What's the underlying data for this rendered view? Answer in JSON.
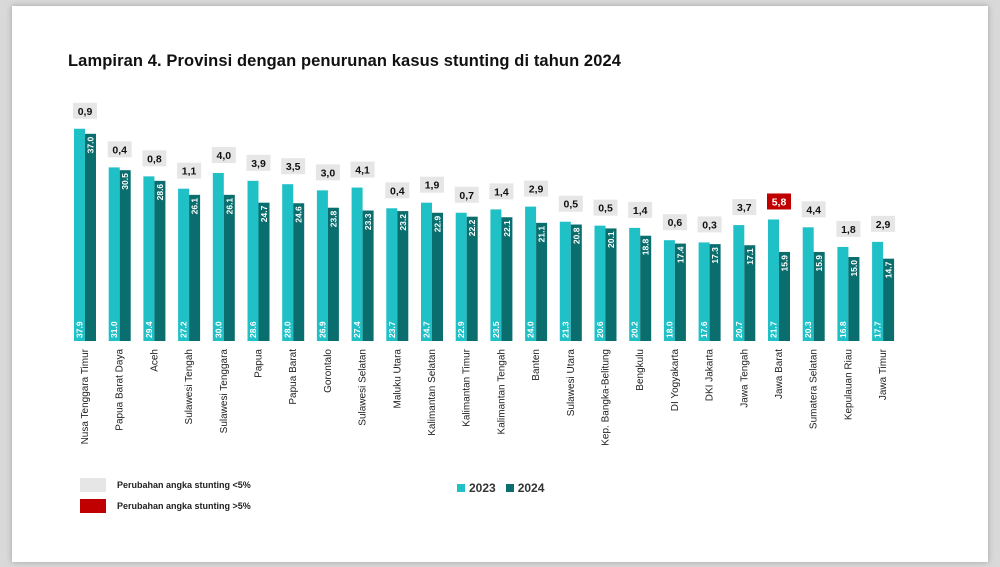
{
  "title": "Lampiran 4. Provinsi dengan penurunan kasus stunting di tahun 2024",
  "colors": {
    "series_2023": "#1fc0c6",
    "series_2024": "#0b6e6e",
    "change_small": "#e6e6e6",
    "change_large": "#c00000"
  },
  "legend": {
    "small_label": "Perubahan angka stunting <5%",
    "large_label": "Perubahan angka stunting >5%"
  },
  "chart_data": {
    "type": "bar",
    "ylim": [
      0,
      40
    ],
    "categories": [
      "Nusa Tenggara Timur",
      "Papua Barat Daya",
      "Aceh",
      "Sulawesi Tengah",
      "Sulawesi Tenggara",
      "Papua",
      "Papua Barat",
      "Gorontalo",
      "Sulawesi Selatan",
      "Maluku Utara",
      "Kalimantan Selatan",
      "Kalimantan Timur",
      "Kalimantan Tengah",
      "Banten",
      "Sulawesi Utara",
      "Kep. Bangka-Belitung",
      "Bengkulu",
      "DI Yogyakarta",
      "DKI Jakarta",
      "Jawa Tengah",
      "Jawa Barat",
      "Sumatera Selatan",
      "Kepulauan Riau",
      "Jawa Timur"
    ],
    "series": [
      {
        "name": "2023",
        "values": [
          37.9,
          31.0,
          29.4,
          27.2,
          30.0,
          28.6,
          28.0,
          26.9,
          27.4,
          23.7,
          24.7,
          22.9,
          23.5,
          24.0,
          21.3,
          20.6,
          20.2,
          18.0,
          17.6,
          20.7,
          21.7,
          20.3,
          16.8,
          17.7
        ],
        "labels": [
          "37.9",
          "31.0",
          "29.4",
          "27.2",
          "30.0",
          "28.6",
          "28.0",
          "26.9",
          "27.4",
          "23.7",
          "24.7",
          "22.9",
          "23.5",
          "24.0",
          "21.3",
          "20.6",
          "20.2",
          "18.0",
          "17.6",
          "20.7",
          "21.7",
          "20.3",
          "16.8",
          "17.7"
        ]
      },
      {
        "name": "2024",
        "values": [
          37.0,
          30.5,
          28.6,
          26.1,
          26.1,
          24.7,
          24.6,
          23.8,
          23.3,
          23.2,
          22.9,
          22.2,
          22.1,
          21.1,
          20.8,
          20.1,
          18.8,
          17.4,
          17.3,
          17.1,
          15.9,
          15.9,
          15.0,
          14.7
        ],
        "labels": [
          "37.0",
          "30.5",
          "28.6",
          "26.1",
          "26.1",
          "24.7",
          "24.6",
          "23.8",
          "23.3",
          "23.2",
          "22.9",
          "22.2",
          "22.1",
          "21.1",
          "20.8",
          "20.1",
          "18.8",
          "17.4",
          "17.3",
          "17.1",
          "15.9",
          "15.9",
          "15.0",
          "14.7"
        ]
      }
    ],
    "changes": [
      "0,9",
      "0,4",
      "0,8",
      "1,1",
      "4,0",
      "3,9",
      "3,5",
      "3,0",
      "4,1",
      "0,4",
      "1,9",
      "0,7",
      "1,4",
      "2,9",
      "0,5",
      "0,5",
      "1,4",
      "0,6",
      "0,3",
      "3,7",
      "5,8",
      "4,4",
      "1,8",
      "2,9"
    ],
    "change_category": [
      "small",
      "small",
      "small",
      "small",
      "small",
      "small",
      "small",
      "small",
      "small",
      "small",
      "small",
      "small",
      "small",
      "small",
      "small",
      "small",
      "small",
      "small",
      "small",
      "small",
      "large",
      "small",
      "small",
      "small"
    ]
  }
}
